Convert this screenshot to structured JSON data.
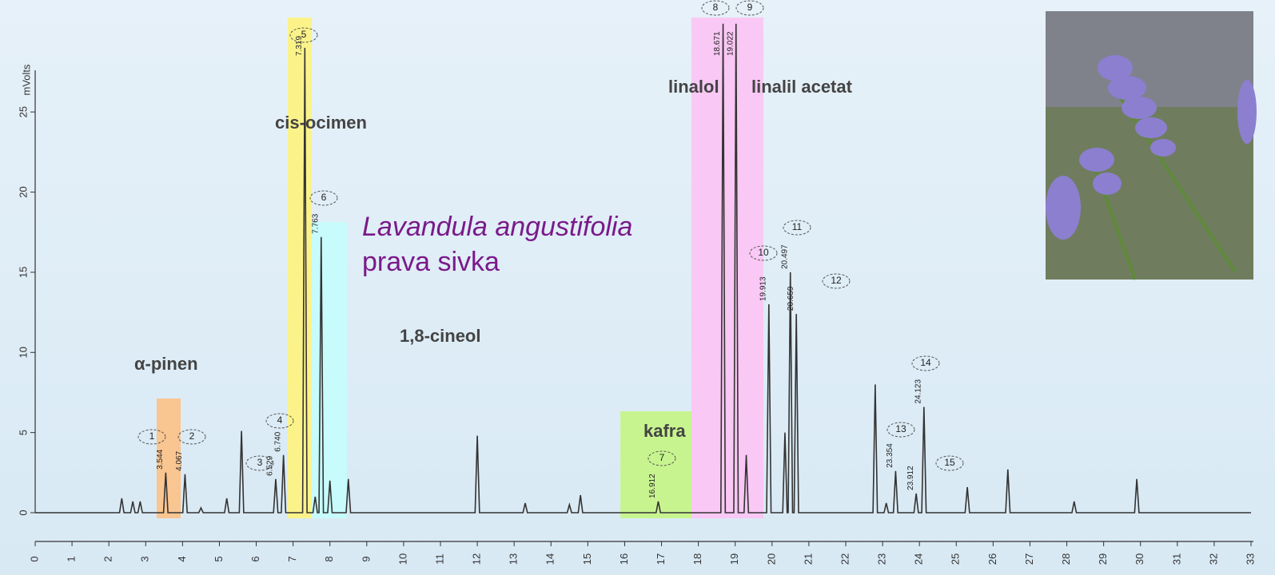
{
  "chart_data": {
    "type": "line",
    "title": "Lavandula angustifolia",
    "subtitle": "prava sivka",
    "y_label": "mVolts",
    "color": "#333333",
    "x": [
      0,
      2.29,
      2.35,
      2.41,
      2.59,
      2.65,
      2.71,
      2.79,
      2.85,
      2.91,
      3.484,
      3.544,
      3.604,
      4.007,
      4.067,
      4.127,
      4.44,
      4.5,
      4.56,
      5.14,
      5.2,
      5.26,
      5.54,
      5.6,
      5.66,
      6.469,
      6.529,
      6.589,
      6.68,
      6.74,
      6.8,
      7.259,
      7.319,
      7.379,
      7.54,
      7.6,
      7.66,
      7.703,
      7.763,
      7.823,
      7.94,
      8.0,
      8.06,
      8.44,
      8.5,
      8.56,
      11.94,
      12,
      12.06,
      13.24,
      13.3,
      13.36,
      14.44,
      14.5,
      14.56,
      14.74,
      14.8,
      14.86,
      16.852,
      16.912,
      16.972,
      18.611,
      18.671,
      18.731,
      18.962,
      19.022,
      19.082,
      19.24,
      19.3,
      19.36,
      19.853,
      19.913,
      19.973,
      20.29,
      20.35,
      20.41,
      20.437,
      20.497,
      20.557,
      20.599,
      20.659,
      20.719,
      22.74,
      22.8,
      22.86,
      23.04,
      23.1,
      23.16,
      23.294,
      23.354,
      23.414,
      23.852,
      23.912,
      23.972,
      24.063,
      24.123,
      24.183,
      25.24,
      25.3,
      25.36,
      26.34,
      26.4,
      26.46,
      28.14,
      28.2,
      28.26,
      29.84,
      29.9,
      29.96,
      33
    ],
    "values": [
      0,
      0,
      0.9,
      0,
      0,
      0.7,
      0,
      0,
      0.7,
      0,
      0,
      2.5,
      0,
      0,
      2.4,
      0,
      0,
      0.3,
      0,
      0,
      0.9,
      0,
      0,
      5.1,
      0,
      0,
      2.1,
      0,
      0,
      3.6,
      0,
      0,
      29,
      0,
      0,
      1.0,
      0,
      0,
      17.2,
      0,
      0,
      2.0,
      0,
      0,
      2.1,
      0,
      0,
      4.8,
      0,
      0,
      0.6,
      0,
      0,
      0.5,
      0,
      0,
      1.1,
      0,
      0,
      0.7,
      0,
      0,
      30.5,
      0,
      0,
      30.5,
      0,
      0,
      3.6,
      0,
      0,
      13.0,
      0,
      0,
      5.0,
      0,
      0,
      15.0,
      0,
      0,
      12.4,
      0,
      0,
      8.0,
      0,
      0,
      0.6,
      0,
      0,
      2.6,
      0,
      0,
      1.2,
      0,
      0,
      6.6,
      0,
      0,
      1.6,
      0,
      0,
      2.7,
      0,
      0,
      0.7,
      0,
      0,
      2.1,
      0,
      0
    ],
    "xlim": [
      0,
      33
    ],
    "xticks": [
      0,
      1,
      2,
      3,
      4,
      5,
      6,
      7,
      8,
      9,
      10,
      11,
      12,
      13,
      14,
      15,
      16,
      17,
      18,
      19,
      20,
      21,
      22,
      23,
      24,
      25,
      26,
      27,
      28,
      29,
      30,
      31,
      32,
      33
    ],
    "ylim": [
      0,
      27.5
    ],
    "yticks": [
      0,
      5,
      10,
      15,
      20,
      25
    ],
    "time_labels": [
      3.544,
      4.067,
      6.529,
      {
        "value": 6.74,
        "label": "6.740"
      },
      7.319,
      7.763,
      16.912,
      18.671,
      19.022,
      19.913,
      20.497,
      20.659,
      23.354,
      23.912,
      24.123
    ],
    "peak_numbers": [
      1,
      2,
      3,
      4,
      5,
      6,
      7,
      8,
      9,
      10,
      11,
      12,
      13,
      14,
      15
    ],
    "compounds": [
      "α-pinen",
      "cis-ocimen",
      "1,8-cineol",
      "kafra",
      "linalol",
      "linalil acetat"
    ]
  }
}
